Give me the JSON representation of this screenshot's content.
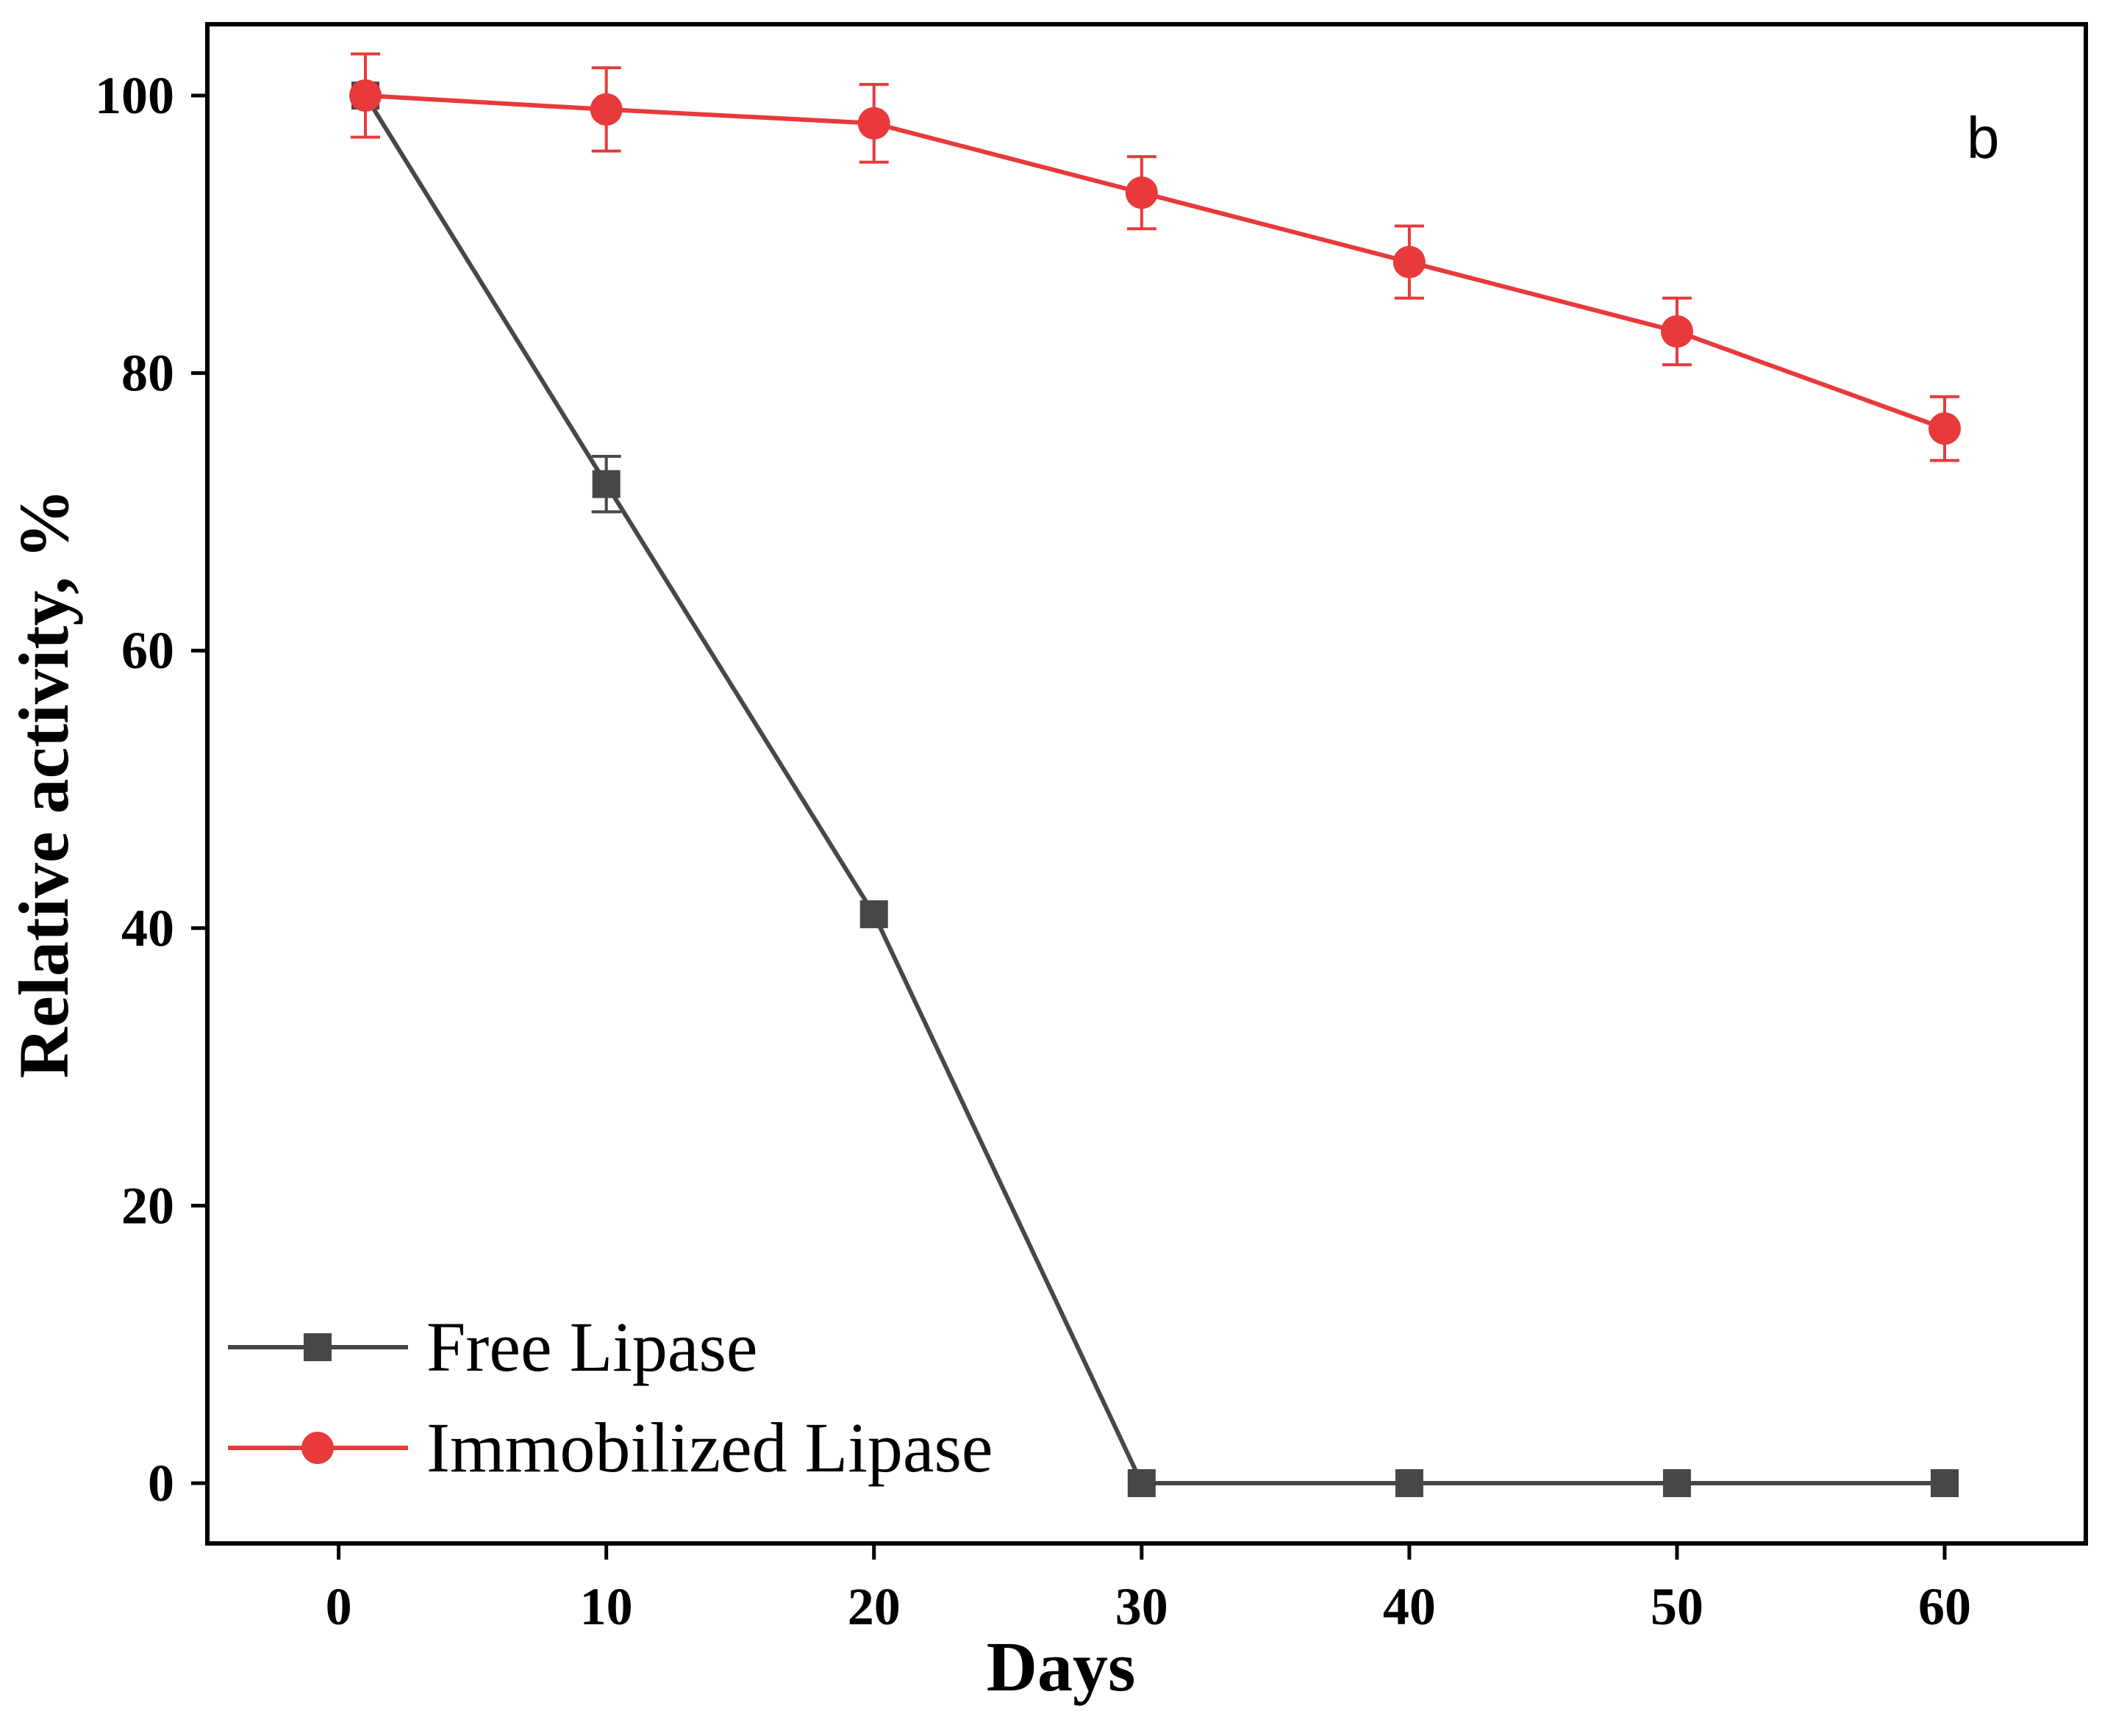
{
  "chart_data": {
    "type": "line",
    "panel_label": "b",
    "xlabel": "Days",
    "ylabel": "Relative activity, %",
    "xlim": [
      -5,
      65
    ],
    "ylim": [
      -4,
      105
    ],
    "xticks": [
      0,
      10,
      20,
      30,
      40,
      50,
      60
    ],
    "yticks": [
      0,
      20,
      40,
      60,
      80,
      100
    ],
    "grid": false,
    "legend_position": "bottom-left",
    "series": [
      {
        "name": "Free Lipase",
        "marker": "square",
        "color": "#474747",
        "x": [
          1,
          10,
          20,
          30,
          40,
          50,
          60
        ],
        "y": [
          100,
          72,
          41,
          0,
          0,
          0,
          0
        ],
        "error": [
          0,
          2,
          0,
          0,
          0,
          0,
          0
        ]
      },
      {
        "name": "Immobilized Lipase",
        "marker": "circle",
        "color": "#e8393b",
        "x": [
          1,
          10,
          20,
          30,
          40,
          50,
          60
        ],
        "y": [
          100,
          99,
          98,
          93,
          88,
          83,
          76
        ],
        "error": [
          3,
          3,
          2.8,
          2.6,
          2.6,
          2.4,
          2.3
        ]
      }
    ]
  }
}
